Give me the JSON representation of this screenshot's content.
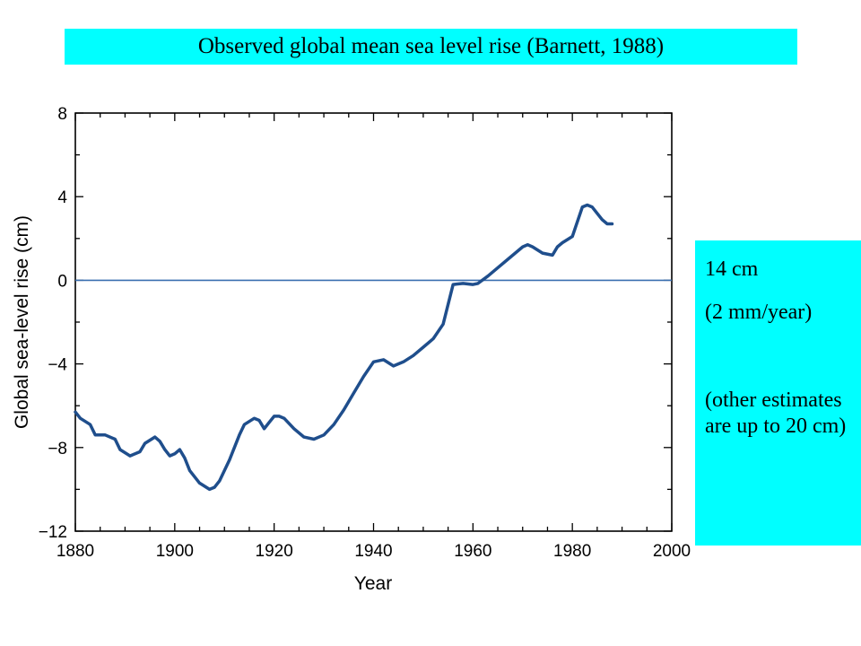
{
  "slide": {
    "title": "Observed global mean sea level rise (Barnett, 1988)",
    "note": {
      "line1": "14 cm",
      "line2": "(2 mm/year)",
      "line3": "(other estimates are up to 20 cm)"
    },
    "colors": {
      "highlight": "#00ffff",
      "series": "#1f4e8c",
      "zero_line": "#3a6fb0"
    }
  },
  "chart_data": {
    "type": "line",
    "title": "",
    "xlabel": "Year",
    "ylabel": "Global sea-level rise (cm)",
    "xlim": [
      1880,
      2000
    ],
    "ylim": [
      -12,
      8
    ],
    "xticks": [
      "1880",
      "1900",
      "1920",
      "1940",
      "1960",
      "1980",
      "2000"
    ],
    "yticks": [
      "8",
      "4",
      "0",
      "−4",
      "−8",
      "−12"
    ],
    "reference_line": 0,
    "grid": false,
    "series": [
      {
        "x": [
          1880,
          1881,
          1883,
          1884,
          1886,
          1888,
          1889,
          1891,
          1893,
          1894,
          1896,
          1897,
          1898,
          1899,
          1900,
          1901,
          1902,
          1903,
          1905,
          1907,
          1908,
          1909,
          1911,
          1913,
          1914,
          1916,
          1917,
          1918,
          1919,
          1920,
          1921,
          1922,
          1924,
          1926,
          1928,
          1930,
          1932,
          1934,
          1936,
          1938,
          1940,
          1942,
          1944,
          1946,
          1948,
          1950,
          1952,
          1954,
          1956,
          1958,
          1960,
          1961,
          1963,
          1965,
          1967,
          1970,
          1971,
          1972,
          1974,
          1976,
          1977,
          1978,
          1980,
          1982,
          1983,
          1984,
          1986,
          1987,
          1988
        ],
        "y": [
          -6.3,
          -6.6,
          -6.9,
          -7.4,
          -7.4,
          -7.6,
          -8.1,
          -8.4,
          -8.2,
          -7.8,
          -7.5,
          -7.7,
          -8.1,
          -8.4,
          -8.3,
          -8.1,
          -8.5,
          -9.1,
          -9.7,
          -10.0,
          -9.9,
          -9.6,
          -8.6,
          -7.4,
          -6.9,
          -6.6,
          -6.7,
          -7.1,
          -6.8,
          -6.5,
          -6.5,
          -6.6,
          -7.1,
          -7.5,
          -7.6,
          -7.4,
          -6.9,
          -6.2,
          -5.4,
          -4.6,
          -3.9,
          -3.8,
          -4.1,
          -3.9,
          -3.6,
          -3.2,
          -2.8,
          -2.1,
          -0.2,
          -0.15,
          -0.2,
          -0.15,
          0.2,
          0.6,
          1.0,
          1.6,
          1.7,
          1.6,
          1.3,
          1.2,
          1.6,
          1.8,
          2.1,
          3.5,
          3.6,
          3.5,
          2.9,
          2.7,
          2.7
        ]
      }
    ]
  }
}
